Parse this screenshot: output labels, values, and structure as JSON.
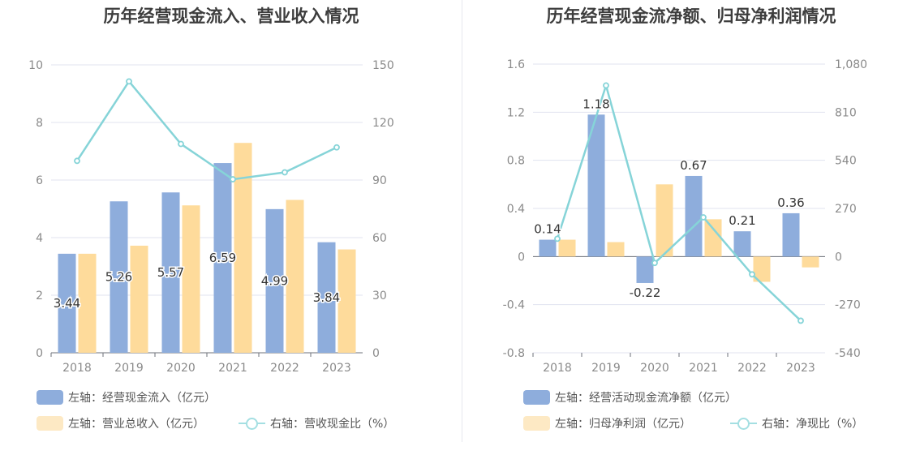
{
  "charts": [
    {
      "id": "left",
      "title": "历年经营现金流入、营业收入情况",
      "chart_data": {
        "type": "bar",
        "categories": [
          "2018",
          "2019",
          "2020",
          "2021",
          "2022",
          "2023"
        ],
        "series": [
          {
            "name": "左轴：经营现金流入（亿元）",
            "axis": "left",
            "type": "bar",
            "color": "#8eaddc",
            "values": [
              3.44,
              5.26,
              5.57,
              6.59,
              4.99,
              3.84
            ],
            "labels": [
              "3.44",
              "5.26",
              "5.57",
              "6.59",
              "4.99",
              "3.84"
            ]
          },
          {
            "name": "左轴：营业总收入（亿元）",
            "axis": "left",
            "type": "bar",
            "color": "#fedb9b",
            "values": [
              3.44,
              3.72,
              5.12,
              7.29,
              5.31,
              3.59
            ]
          },
          {
            "name": "右轴：营收现金比（%）",
            "axis": "right",
            "type": "line",
            "color": "#86d4d8",
            "values": [
              100.0,
              141.4,
              108.8,
              90.4,
              94.0,
              107.0
            ]
          }
        ],
        "y_left": {
          "min": 0,
          "max": 10,
          "ticks": [
            "0",
            "2",
            "4",
            "6",
            "8",
            "10"
          ]
        },
        "y_right": {
          "min": 0,
          "max": 150,
          "ticks": [
            "0",
            "30",
            "60",
            "90",
            "120",
            "150"
          ]
        },
        "grid": true,
        "legend_position": "bottom-left"
      }
    },
    {
      "id": "right",
      "title": "历年经营现金流净额、归母净利润情况",
      "chart_data": {
        "type": "bar",
        "categories": [
          "2018",
          "2019",
          "2020",
          "2021",
          "2022",
          "2023"
        ],
        "series": [
          {
            "name": "左轴：经营活动现金流净额（亿元）",
            "axis": "left",
            "type": "bar",
            "color": "#8eaddc",
            "values": [
              0.14,
              1.18,
              -0.22,
              0.67,
              0.21,
              0.36
            ],
            "labels": [
              "0.14",
              "1.18",
              "-0.22",
              "0.67",
              "0.21",
              "0.36"
            ]
          },
          {
            "name": "左轴：归母净利润（亿元）",
            "axis": "left",
            "type": "bar",
            "color": "#fedb9b",
            "values": [
              0.14,
              0.12,
              0.6,
              0.31,
              -0.21,
              -0.09
            ]
          },
          {
            "name": "右轴：净现比（%）",
            "axis": "right",
            "type": "line",
            "color": "#86d4d8",
            "values": [
              100,
              960,
              -36,
              220,
              -100,
              -360
            ]
          }
        ],
        "y_left": {
          "min": -0.8,
          "max": 1.6,
          "ticks": [
            "-0.8",
            "-0.4",
            "0",
            "0.4",
            "0.8",
            "1.2",
            "1.6"
          ]
        },
        "y_right": {
          "min": -540,
          "max": 1080,
          "ticks": [
            "-540",
            "-270",
            "0",
            "270",
            "540",
            "810",
            "1,080"
          ]
        },
        "grid": true,
        "legend_position": "bottom-left"
      }
    }
  ]
}
